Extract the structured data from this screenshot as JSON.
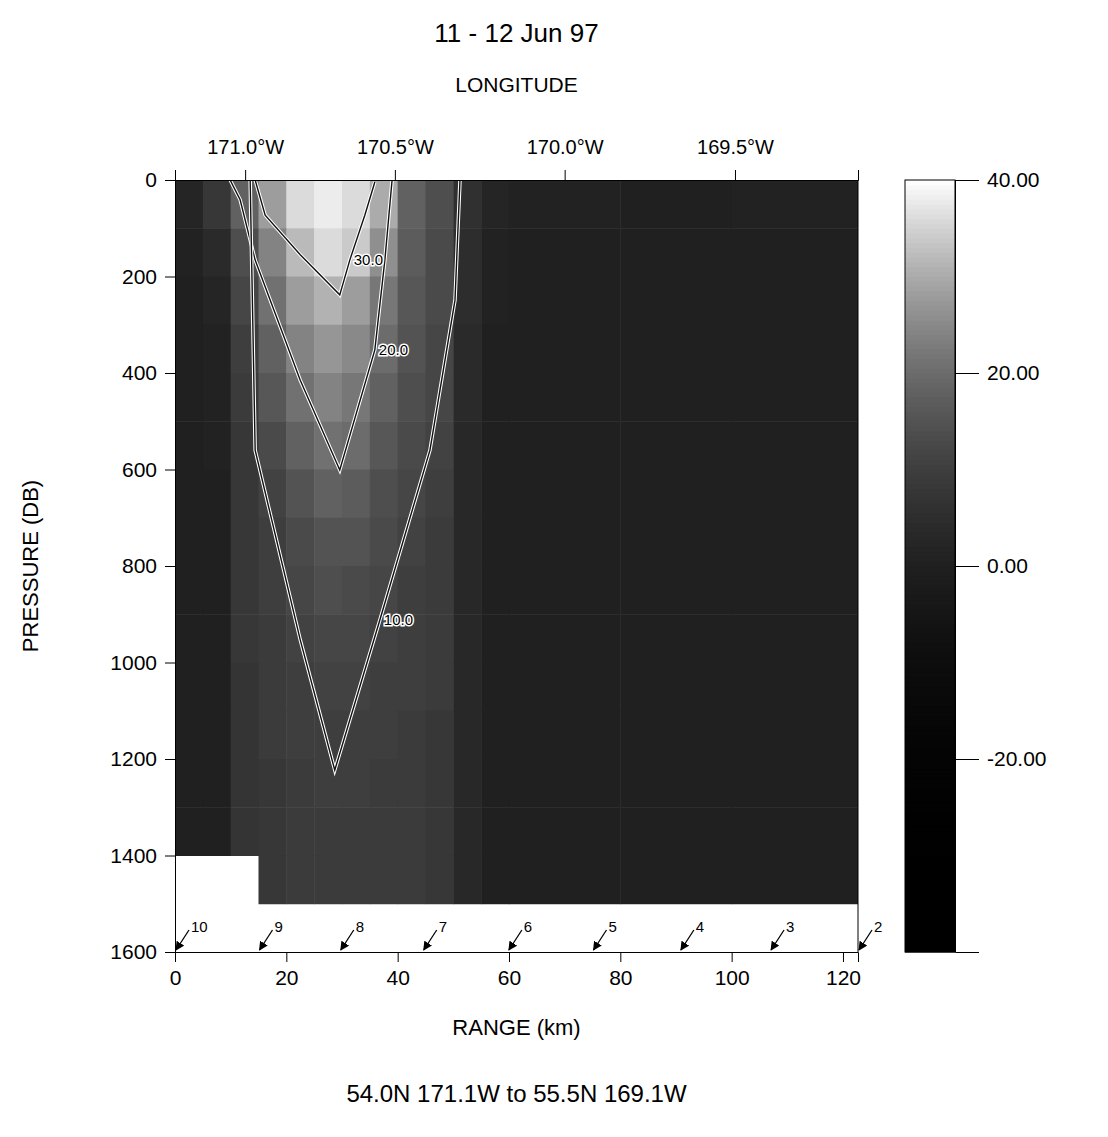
{
  "chart_data": {
    "type": "heatmap",
    "title": "11 - 12 Jun 97",
    "subtitle": "54.0N 171.1W to 55.5N 169.1W",
    "x_label": "RANGE (km)",
    "y_label": "PRESSURE (DB)",
    "xlim": [
      0,
      122.7
    ],
    "ylim": [
      0,
      1600
    ],
    "xticks": [
      0,
      20,
      40,
      60,
      80,
      100,
      120
    ],
    "yticks": [
      0,
      200,
      400,
      600,
      800,
      1000,
      1200,
      1400,
      1600
    ],
    "top_axis": {
      "label": "LONGITUDE",
      "ticks": [
        {
          "value": 12.6,
          "label": "171.0°W"
        },
        {
          "value": 39.5,
          "label": "170.5°W"
        },
        {
          "value": 70,
          "label": "170.0°W"
        },
        {
          "value": 100.6,
          "label": "169.5°W"
        }
      ]
    },
    "x_edges": [
      0,
      5,
      10,
      15,
      20,
      25,
      30,
      35,
      40,
      45,
      50,
      55,
      60,
      80,
      100,
      122.7
    ],
    "y_edges": [
      0,
      100,
      200,
      300,
      400,
      500,
      600,
      700,
      800,
      900,
      1000,
      1100,
      1200,
      1300,
      1400,
      1500
    ],
    "cells": [
      [
        2,
        8,
        18,
        28,
        36,
        38,
        36,
        30,
        18,
        14,
        6,
        2,
        1,
        0,
        1
      ],
      [
        1,
        4,
        14,
        24,
        32,
        36,
        34,
        26,
        17,
        13,
        5,
        1,
        0,
        0,
        0
      ],
      [
        0,
        2,
        12,
        21,
        28,
        31,
        28,
        22,
        16,
        13,
        5,
        1,
        0,
        0,
        0
      ],
      [
        0,
        1,
        10,
        18,
        24,
        27,
        25,
        20,
        15,
        12,
        4,
        0,
        0,
        0,
        0
      ],
      [
        0,
        1,
        9,
        16,
        21,
        24,
        22,
        18,
        14,
        12,
        4,
        0,
        0,
        0,
        0
      ],
      [
        0,
        1,
        8,
        13,
        18,
        21,
        20,
        16,
        13,
        11,
        3,
        0,
        0,
        0,
        0
      ],
      [
        0,
        0,
        8,
        11,
        15,
        18,
        17,
        14,
        12,
        10,
        3,
        0,
        0,
        0,
        0
      ],
      [
        0,
        0,
        8,
        10,
        13,
        15,
        15,
        13,
        11,
        9,
        3,
        0,
        0,
        0,
        0
      ],
      [
        0,
        0,
        8,
        10,
        12,
        14,
        13,
        12,
        10,
        9,
        3,
        0,
        0,
        0,
        0
      ],
      [
        0,
        0,
        8,
        9,
        11,
        12,
        12,
        11,
        10,
        9,
        3,
        0,
        0,
        0,
        0
      ],
      [
        0,
        0,
        7,
        9,
        10,
        11,
        11,
        10,
        10,
        9,
        3,
        0,
        0,
        0,
        0
      ],
      [
        0,
        0,
        7,
        9,
        10,
        10,
        10,
        10,
        9,
        8,
        3,
        0,
        0,
        0,
        0
      ],
      [
        0,
        0,
        7,
        8,
        9,
        10,
        10,
        9,
        9,
        8,
        3,
        0,
        0,
        0,
        0
      ],
      [
        0,
        0,
        7,
        8,
        9,
        9,
        9,
        9,
        9,
        8,
        3,
        0,
        0,
        0,
        0
      ],
      [
        null,
        null,
        null,
        8,
        9,
        9,
        9,
        9,
        9,
        8,
        3,
        0,
        0,
        0,
        0
      ]
    ],
    "colorbar": {
      "range": [
        -40,
        40
      ],
      "ticks": [
        {
          "value": 40,
          "label": "40.00"
        },
        {
          "value": 20,
          "label": "20.00"
        },
        {
          "value": 0,
          "label": "0.00"
        },
        {
          "value": -20,
          "label": "-20.00"
        }
      ]
    },
    "contours": [
      {
        "label": "30.0",
        "x": [
          14.4,
          16.2,
          22.5,
          29.6,
          31.4,
          34.1,
          35.9
        ],
        "y": [
          0,
          73,
          155,
          238,
          166,
          73,
          4
        ]
      },
      {
        "label": "20.0",
        "x": [
          9.9,
          11.7,
          14.4,
          22.5,
          29.6,
          35.9,
          37.7,
          39.0
        ],
        "y": [
          0,
          41,
          166,
          415,
          601,
          352,
          166,
          0
        ]
      },
      {
        "label": "10.0",
        "x": [
          13.5,
          14.4,
          22.5,
          28.7,
          36.8,
          45.8,
          50.3,
          51.2
        ],
        "y": [
          0,
          560,
          953,
          1223,
          912,
          560,
          249,
          0
        ]
      }
    ],
    "stations": {
      "numbers": [
        10,
        9,
        8,
        7,
        6,
        5,
        4,
        3,
        2
      ],
      "x": [
        0,
        15,
        29.6,
        44.5,
        59.8,
        75,
        90.7,
        106.9,
        122.7
      ]
    }
  }
}
